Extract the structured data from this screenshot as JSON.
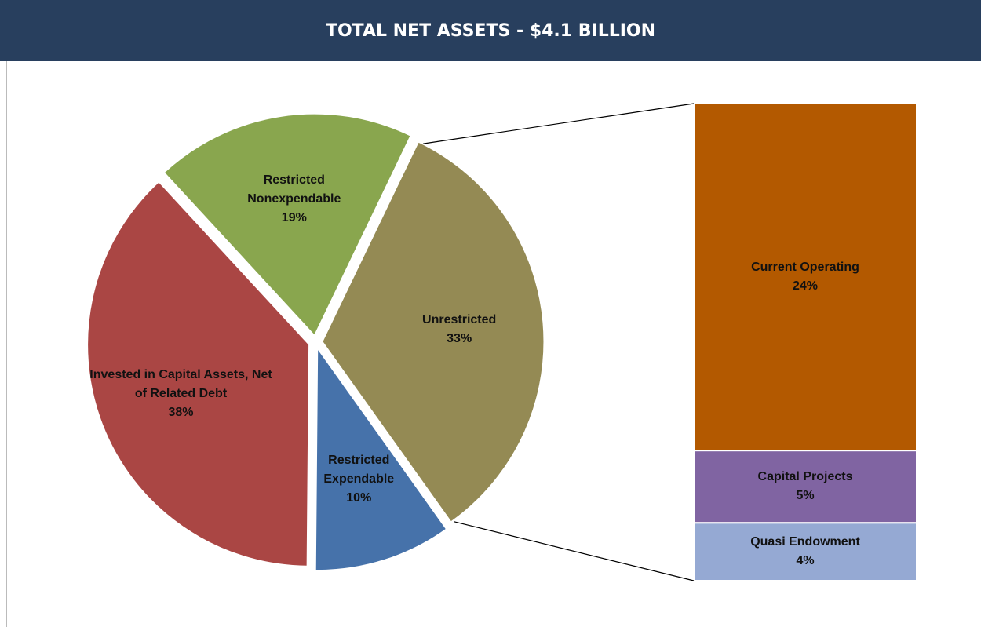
{
  "chart_data": {
    "type": "pie",
    "title": "TOTAL NET ASSETS - $4.1 BILLION",
    "categories": [
      "Unrestricted",
      "Restricted Expendable",
      "Invested in Capital Assets, Net of Related Debt",
      "Restricted Nonexpendable"
    ],
    "values": [
      33,
      10,
      38,
      19
    ],
    "value_labels": [
      "33%",
      "10%",
      "38%",
      "19%"
    ],
    "colors": [
      "#948a54",
      "#4672aa",
      "#aa4644",
      "#89a64e"
    ],
    "breakdown": {
      "type": "bar",
      "categories": [
        "Current Operating",
        "Capital Projects",
        "Quasi Endowment"
      ],
      "values": [
        24,
        5,
        4
      ],
      "value_labels": [
        "24%",
        "5%",
        "4%"
      ],
      "colors": [
        "#b35900",
        "#8064a2",
        "#95a9d3"
      ]
    }
  }
}
